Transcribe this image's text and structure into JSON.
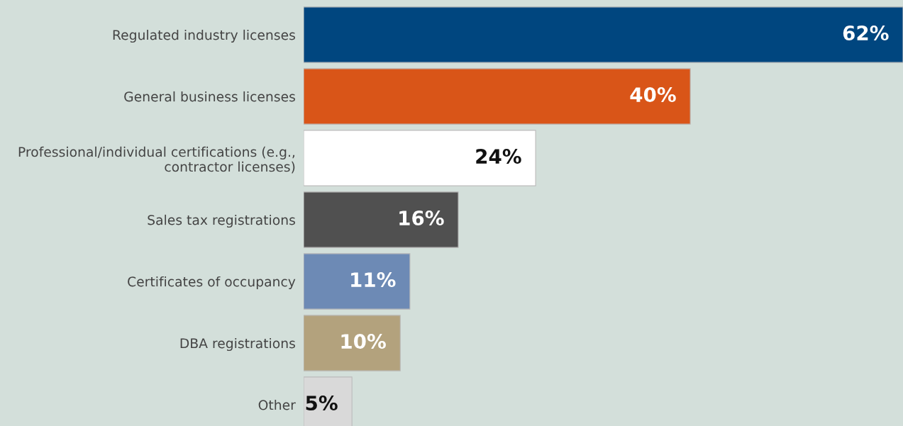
{
  "chart_data": {
    "type": "bar",
    "orientation": "horizontal",
    "categories": [
      "Regulated industry licenses",
      "General business licenses",
      "Professional/individual certifications (e.g.,\ncontractor licenses)",
      "Sales tax registrations",
      "Certificates of occupancy",
      "DBA registrations",
      "Other"
    ],
    "values": [
      62,
      40,
      24,
      16,
      11,
      10,
      5
    ],
    "colors": [
      "#00467f",
      "#d95518",
      "#ffffff",
      "#505050",
      "#6d8ab5",
      "#b3a27d",
      "#d9d9d9"
    ],
    "value_labels": [
      "62%",
      "40%",
      "24%",
      "16%",
      "11%",
      "10%",
      "5%"
    ],
    "tick_labels": "y",
    "grid": false,
    "legend": false
  }
}
